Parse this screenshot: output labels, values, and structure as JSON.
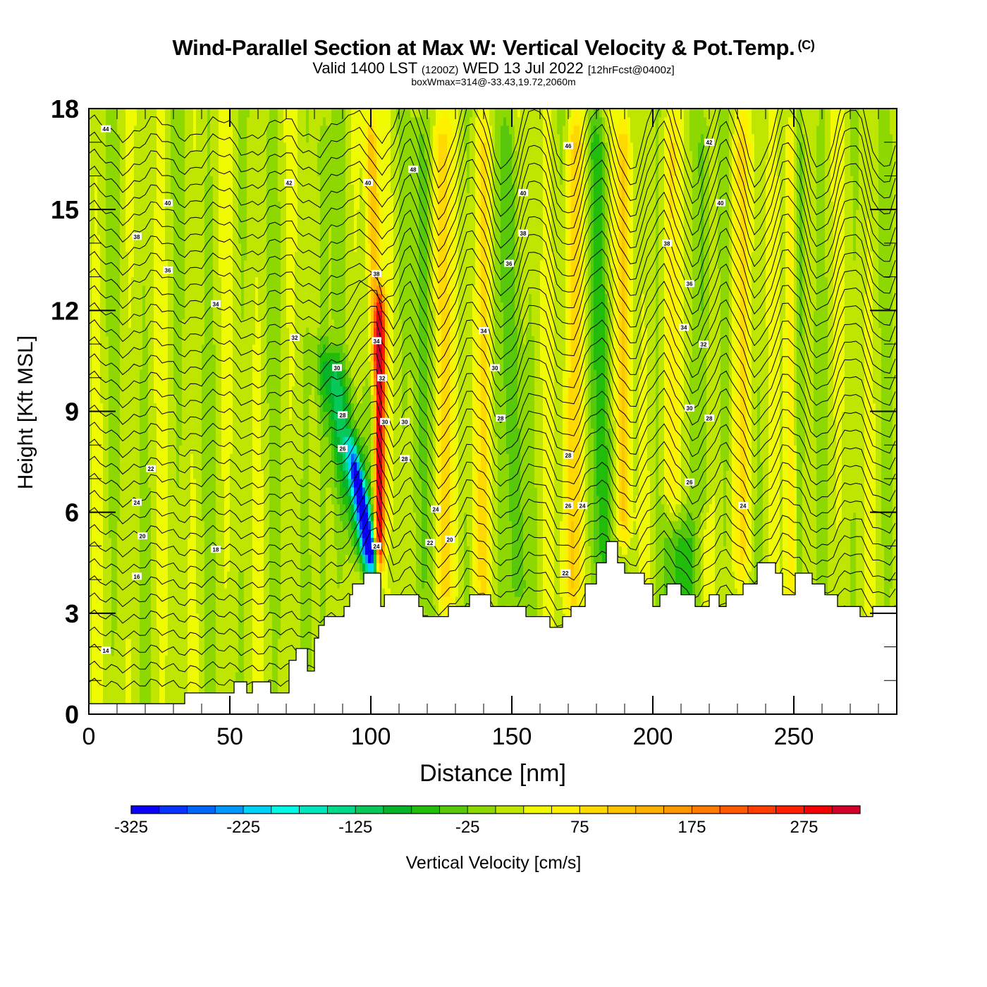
{
  "chart_data": {
    "type": "heatmap",
    "title": "Wind-Parallel Section at Max W: Vertical Velocity & Pot.Temp.",
    "title_mark": "(C)",
    "subtitle": {
      "valid_prefix": "Valid 1400 LST",
      "utc": "(1200Z)",
      "date": "WED 13 Jul 2022",
      "forecast": "[12hrFcst@0400z]"
    },
    "annotation": "boxWmax=314@-33.43,19.72,2060m",
    "xlabel": "Distance [nm]",
    "ylabel": "Height [Kft MSL]",
    "xlim": [
      0,
      286.5
    ],
    "ylim": [
      0,
      18
    ],
    "xticks": [
      0,
      50,
      100,
      150,
      200,
      250
    ],
    "xtick_labels": [
      "0",
      "50",
      "100",
      "150",
      "200",
      "250"
    ],
    "yticks": [
      0,
      3,
      6,
      9,
      12,
      15,
      18
    ],
    "ytick_labels": [
      "0",
      "3",
      "6",
      "9",
      "12",
      "15",
      "18"
    ],
    "x_minor_step": 10,
    "y_minor_step": 1,
    "colorbar": {
      "label": "Vertical Velocity [cm/s]",
      "orientation": "horizontal",
      "placement": "bottom",
      "levels_min": -325,
      "level_step": 25,
      "tick_values": [
        -325,
        -225,
        -125,
        -25,
        75,
        175,
        275
      ],
      "tick_labels": [
        "-325",
        "-225",
        "-125",
        "-25",
        "75",
        "175",
        "275"
      ],
      "colors": [
        "#0a00f5",
        "#0632fa",
        "#0066fa",
        "#0099fa",
        "#00d2fa",
        "#00fae6",
        "#00e6be",
        "#00d98c",
        "#08c85a",
        "#06b42a",
        "#22bd0a",
        "#58c80a",
        "#8cd800",
        "#bee600",
        "#f0fa00",
        "#fff000",
        "#ffd800",
        "#ffc400",
        "#ffb000",
        "#ff9800",
        "#ff7c00",
        "#ff5a00",
        "#ff3c00",
        "#ff1e00",
        "#f50000",
        "#d20028"
      ]
    },
    "w_field_features": [
      {
        "name": "updraft-core",
        "x_nm_at_surface": 103,
        "tilt_nm_per_kft": 0.05,
        "width_nm": 1.8,
        "w_cms": 314,
        "z_range_kft": [
          4.2,
          12.5
        ]
      },
      {
        "name": "downdraft-core",
        "x_nm_at_surface": 101,
        "tilt_nm_per_kft": -2.1,
        "width_nm": 2.2,
        "w_cms": -310,
        "z_range_kft": [
          4.2,
          8.0
        ]
      },
      {
        "name": "downdraft-sheath",
        "x_nm_at_surface": 100,
        "tilt_nm_per_kft": -2.3,
        "width_nm": 5.5,
        "w_cms": -110,
        "z_range_kft": [
          4.2,
          11.0
        ]
      },
      {
        "name": "upper-updraft-a",
        "x_nm_at_surface": 102,
        "tilt_nm_per_kft": -0.25,
        "width_nm": 2.2,
        "w_cms": 120,
        "z_range_kft": [
          10,
          18
        ]
      },
      {
        "name": "wave-up-1",
        "x_nm_at_surface": 126,
        "tilt_nm_per_kft": -0.1,
        "width_nm": 3.2,
        "w_cms": 80,
        "z_range_kft": [
          3,
          18
        ]
      },
      {
        "name": "wave-down-1",
        "x_nm_at_surface": 118,
        "tilt_nm_per_kft": 0.0,
        "width_nm": 3.0,
        "w_cms": -55,
        "z_range_kft": [
          3,
          18
        ]
      },
      {
        "name": "wave-up-2",
        "x_nm_at_surface": 140,
        "tilt_nm_per_kft": 0.0,
        "width_nm": 3.0,
        "w_cms": 55,
        "z_range_kft": [
          3,
          18
        ]
      },
      {
        "name": "wave-down-2",
        "x_nm_at_surface": 152,
        "tilt_nm_per_kft": -0.2,
        "width_nm": 3.0,
        "w_cms": -60,
        "z_range_kft": [
          3,
          18
        ]
      },
      {
        "name": "wave-up-3",
        "x_nm_at_surface": 171,
        "tilt_nm_per_kft": 0.1,
        "width_nm": 3.2,
        "w_cms": 85,
        "z_range_kft": [
          3,
          18
        ]
      },
      {
        "name": "wave-down-3",
        "x_nm_at_surface": 184,
        "tilt_nm_per_kft": -0.3,
        "width_nm": 3.5,
        "w_cms": -70,
        "z_range_kft": [
          4,
          18
        ]
      },
      {
        "name": "wave-up-4",
        "x_nm_at_surface": 190,
        "tilt_nm_per_kft": 0.0,
        "width_nm": 2.4,
        "w_cms": 100,
        "z_range_kft": [
          5,
          18
        ]
      },
      {
        "name": "wave-down-4",
        "x_nm_at_surface": 210,
        "tilt_nm_per_kft": 0.0,
        "width_nm": 5.0,
        "w_cms": -80,
        "z_range_kft": [
          3,
          6
        ]
      },
      {
        "name": "wave-up-5",
        "x_nm_at_surface": 206,
        "tilt_nm_per_kft": 0.0,
        "width_nm": 3.0,
        "w_cms": 55,
        "z_range_kft": [
          6,
          18
        ]
      },
      {
        "name": "wave-down-5",
        "x_nm_at_surface": 218,
        "tilt_nm_per_kft": 0.0,
        "width_nm": 2.5,
        "w_cms": -50,
        "z_range_kft": [
          6,
          18
        ]
      },
      {
        "name": "wave-up-6",
        "x_nm_at_surface": 232,
        "tilt_nm_per_kft": 0.0,
        "width_nm": 3.5,
        "w_cms": 60,
        "z_range_kft": [
          4,
          18
        ]
      },
      {
        "name": "wave-up-7",
        "x_nm_at_surface": 249,
        "tilt_nm_per_kft": 0.0,
        "width_nm": 2.0,
        "w_cms": 80,
        "z_range_kft": [
          3,
          18
        ]
      },
      {
        "name": "wave-down-6",
        "x_nm_at_surface": 252,
        "tilt_nm_per_kft": 0.0,
        "width_nm": 2.0,
        "w_cms": -50,
        "z_range_kft": [
          3,
          18
        ]
      },
      {
        "name": "wave-down-7",
        "x_nm_at_surface": 83,
        "tilt_nm_per_kft": 0.0,
        "width_nm": 2.0,
        "w_cms": -45,
        "z_range_kft": [
          2,
          18
        ]
      }
    ],
    "terrain_kft": {
      "distance_nm": [
        0,
        34,
        34,
        51.5,
        51.5,
        56,
        56,
        58,
        58,
        64.5,
        64.5,
        71,
        71,
        73.5,
        73.5,
        77.5,
        77.5,
        80,
        80,
        81.5,
        81.5,
        83.5,
        83.5,
        85,
        85,
        90.5,
        90.5,
        92.5,
        92.5,
        93.5,
        93.5,
        97.5,
        97.5,
        100.5,
        100.5,
        103.5,
        103.5,
        104.8,
        104.8,
        117,
        117,
        118.5,
        118.5,
        127.5,
        127.5,
        135,
        135,
        142.5,
        142.5,
        155,
        155,
        163.5,
        163.5,
        168,
        168,
        171,
        171,
        176,
        176,
        180,
        180,
        183.5,
        183.5,
        187.5,
        187.5,
        190,
        190,
        197,
        197,
        200,
        200,
        202.5,
        202.5,
        205,
        205,
        210,
        210,
        215,
        215,
        220,
        220,
        223.5,
        223.5,
        226,
        226,
        232,
        232,
        237,
        237,
        243.5,
        243.5,
        246,
        246,
        250.5,
        250.5,
        256.5,
        256.5,
        261,
        261,
        265.5,
        265.5,
        273.5,
        273.5,
        278,
        278,
        286.5
      ],
      "height_kft": [
        0.31,
        0.31,
        0.63,
        0.63,
        0.96,
        0.96,
        0.63,
        0.63,
        0.96,
        0.96,
        0.63,
        0.63,
        1.6,
        1.6,
        1.95,
        1.95,
        1.28,
        1.28,
        2.26,
        2.26,
        2.64,
        2.64,
        2.9,
        2.9,
        2.9,
        2.9,
        3.2,
        3.2,
        3.55,
        3.55,
        3.87,
        3.87,
        4.19,
        4.19,
        4.19,
        4.19,
        3.2,
        3.2,
        3.55,
        3.55,
        3.2,
        3.2,
        2.9,
        2.9,
        3.2,
        3.2,
        3.55,
        3.55,
        3.2,
        3.2,
        2.9,
        2.9,
        2.58,
        2.58,
        2.9,
        2.9,
        3.2,
        3.2,
        3.87,
        3.87,
        4.5,
        4.5,
        5.13,
        5.13,
        4.5,
        4.5,
        4.19,
        4.19,
        3.87,
        3.87,
        3.2,
        3.2,
        3.55,
        3.55,
        3.87,
        3.87,
        3.55,
        3.55,
        3.2,
        3.2,
        3.55,
        3.55,
        3.2,
        3.2,
        3.55,
        3.55,
        3.87,
        3.87,
        4.5,
        4.5,
        4.19,
        4.19,
        3.55,
        3.55,
        4.19,
        4.19,
        3.87,
        3.87,
        3.55,
        3.55,
        3.2,
        3.2,
        2.9,
        2.9,
        3.2,
        3.2
      ]
    },
    "theta_contours": {
      "label_values": [
        44,
        42,
        40,
        38,
        36,
        34,
        32,
        30,
        28,
        26,
        24,
        22,
        20,
        18,
        16,
        14
      ],
      "base_kft": 0.9,
      "interval_kft_per_label": 1.05,
      "lines_per_label_step": 2,
      "labels": [
        {
          "text": "44",
          "x": 6,
          "z": 17.4
        },
        {
          "text": "42",
          "x": 71,
          "z": 15.8
        },
        {
          "text": "40",
          "x": 28,
          "z": 15.2
        },
        {
          "text": "38",
          "x": 17,
          "z": 14.2
        },
        {
          "text": "36",
          "x": 28,
          "z": 13.2
        },
        {
          "text": "34",
          "x": 45,
          "z": 12.2
        },
        {
          "text": "32",
          "x": 73,
          "z": 11.2
        },
        {
          "text": "30",
          "x": 88,
          "z": 10.3
        },
        {
          "text": "28",
          "x": 90,
          "z": 8.9
        },
        {
          "text": "26",
          "x": 90,
          "z": 7.9
        },
        {
          "text": "22",
          "x": 22,
          "z": 7.3
        },
        {
          "text": "24",
          "x": 17,
          "z": 6.3
        },
        {
          "text": "20",
          "x": 19,
          "z": 5.3
        },
        {
          "text": "18",
          "x": 45,
          "z": 4.9
        },
        {
          "text": "16",
          "x": 17,
          "z": 4.1
        },
        {
          "text": "14",
          "x": 6,
          "z": 1.9
        },
        {
          "text": "40",
          "x": 99,
          "z": 15.8
        },
        {
          "text": "38",
          "x": 102,
          "z": 13.1
        },
        {
          "text": "34",
          "x": 102,
          "z": 11.1
        },
        {
          "text": "32",
          "x": 104,
          "z": 10.0
        },
        {
          "text": "30",
          "x": 105,
          "z": 8.7
        },
        {
          "text": "30",
          "x": 112,
          "z": 8.7
        },
        {
          "text": "28",
          "x": 112,
          "z": 7.6
        },
        {
          "text": "24",
          "x": 102,
          "z": 5.0
        },
        {
          "text": "24",
          "x": 123,
          "z": 6.1
        },
        {
          "text": "22",
          "x": 121,
          "z": 5.1
        },
        {
          "text": "20",
          "x": 128,
          "z": 5.2
        },
        {
          "text": "48",
          "x": 115,
          "z": 16.2
        },
        {
          "text": "46",
          "x": 170,
          "z": 16.9
        },
        {
          "text": "42",
          "x": 220,
          "z": 17.0
        },
        {
          "text": "40",
          "x": 154,
          "z": 15.5
        },
        {
          "text": "40",
          "x": 224,
          "z": 15.2
        },
        {
          "text": "38",
          "x": 154,
          "z": 14.3
        },
        {
          "text": "38",
          "x": 205,
          "z": 14.0
        },
        {
          "text": "36",
          "x": 149,
          "z": 13.4
        },
        {
          "text": "36",
          "x": 213,
          "z": 12.8
        },
        {
          "text": "34",
          "x": 140,
          "z": 11.4
        },
        {
          "text": "34",
          "x": 211,
          "z": 11.5
        },
        {
          "text": "32",
          "x": 218,
          "z": 11.0
        },
        {
          "text": "30",
          "x": 144,
          "z": 10.3
        },
        {
          "text": "30",
          "x": 213,
          "z": 9.1
        },
        {
          "text": "28",
          "x": 146,
          "z": 8.8
        },
        {
          "text": "28",
          "x": 220,
          "z": 8.8
        },
        {
          "text": "28",
          "x": 170,
          "z": 7.7
        },
        {
          "text": "26",
          "x": 213,
          "z": 6.9
        },
        {
          "text": "26",
          "x": 170,
          "z": 6.2
        },
        {
          "text": "24",
          "x": 175,
          "z": 6.2
        },
        {
          "text": "24",
          "x": 232,
          "z": 6.2
        },
        {
          "text": "22",
          "x": 169,
          "z": 4.2
        }
      ]
    }
  }
}
